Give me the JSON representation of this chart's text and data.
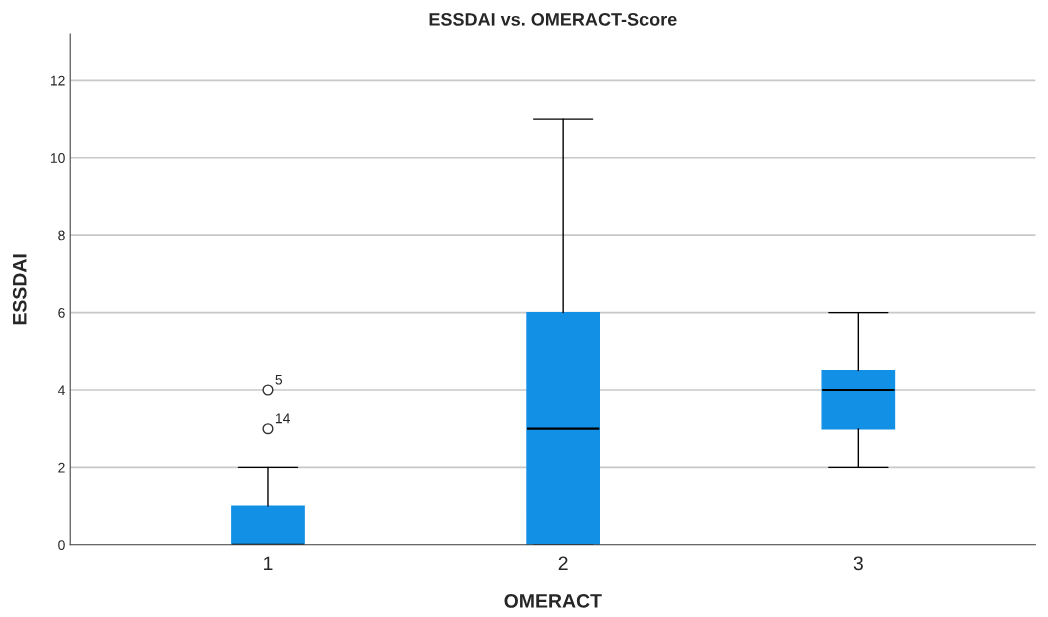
{
  "chart_data": {
    "type": "box",
    "title": "ESSDAI vs. OMERACT-Score",
    "xlabel": "OMERACT",
    "ylabel": "ESSDAI",
    "categories": [
      "1",
      "2",
      "3"
    ],
    "color": "#1290e6",
    "boxes": [
      {
        "low": 0,
        "q1": 0,
        "median": 0,
        "q3": 1,
        "high": 2,
        "outliers": [
          4,
          3
        ]
      },
      {
        "low": 0,
        "q1": 0,
        "median": 3,
        "q3": 6,
        "high": 11
      },
      {
        "low": 2,
        "q1": 3,
        "median": 4,
        "q3": 4.5,
        "high": 6
      }
    ],
    "annotations": [
      "5",
      "14"
    ],
    "ylim": [
      0,
      13.2
    ],
    "yticks": [
      0,
      2,
      4,
      6,
      8,
      10,
      12
    ],
    "grid": "y",
    "marker": "circle"
  }
}
